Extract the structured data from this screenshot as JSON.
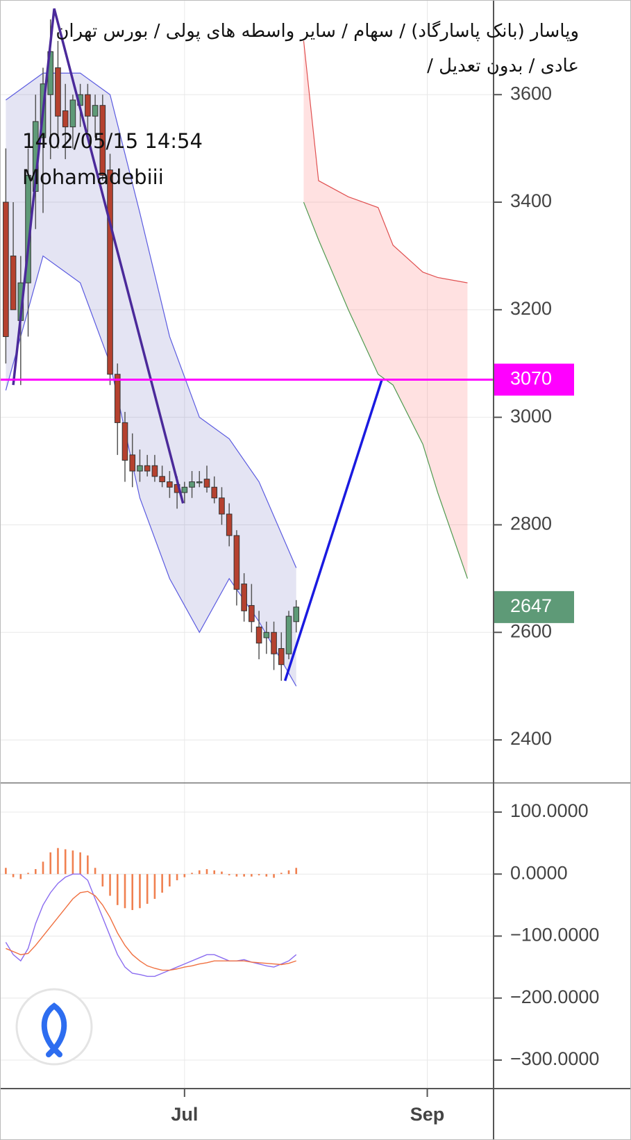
{
  "chart_data": [
    {
      "type": "candlestick",
      "title": "وپاسار (بانک پاسارگاد) / سهام / سایر واسطه های پولی / بورس تهران",
      "subtitle": "عادی / بدون تعدیل /",
      "timestamp": "1402/05/15 14:54",
      "author": "Mohamadebiii",
      "up_color": "#5e9a77",
      "down_color": "#b5412f",
      "ohlc": [
        [
          3400,
          3500,
          3100,
          3150
        ],
        [
          3300,
          3400,
          3200,
          3200
        ],
        [
          3180,
          3300,
          3060,
          3250
        ],
        [
          3250,
          3500,
          3150,
          3450
        ],
        [
          3420,
          3600,
          3350,
          3550
        ],
        [
          3520,
          3650,
          3380,
          3620
        ],
        [
          3600,
          3740,
          3480,
          3680
        ],
        [
          3650,
          3700,
          3500,
          3560
        ],
        [
          3570,
          3620,
          3480,
          3540
        ],
        [
          3540,
          3600,
          3500,
          3590
        ],
        [
          3580,
          3620,
          3540,
          3600
        ],
        [
          3600,
          3620,
          3530,
          3560
        ],
        [
          3560,
          3600,
          3520,
          3580
        ],
        [
          3580,
          3600,
          3440,
          3450
        ],
        [
          3460,
          3490,
          3060,
          3080
        ],
        [
          3080,
          3100,
          2930,
          2990
        ],
        [
          2990,
          3010,
          2880,
          2920
        ],
        [
          2930,
          2970,
          2870,
          2900
        ],
        [
          2900,
          2940,
          2880,
          2910
        ],
        [
          2910,
          2930,
          2890,
          2900
        ],
        [
          2910,
          2930,
          2880,
          2890
        ],
        [
          2890,
          2910,
          2870,
          2880
        ],
        [
          2880,
          2900,
          2850,
          2870
        ],
        [
          2875,
          2890,
          2830,
          2860
        ],
        [
          2860,
          2880,
          2840,
          2870
        ],
        [
          2870,
          2900,
          2850,
          2880
        ],
        [
          2880,
          2900,
          2870,
          2880
        ],
        [
          2885,
          2910,
          2860,
          2870
        ],
        [
          2870,
          2890,
          2840,
          2850
        ],
        [
          2850,
          2870,
          2800,
          2820
        ],
        [
          2820,
          2840,
          2760,
          2780
        ],
        [
          2780,
          2790,
          2650,
          2680
        ],
        [
          2690,
          2710,
          2620,
          2640
        ],
        [
          2650,
          2690,
          2600,
          2620
        ],
        [
          2610,
          2640,
          2550,
          2580
        ],
        [
          2590,
          2620,
          2560,
          2600
        ],
        [
          2600,
          2620,
          2530,
          2560
        ],
        [
          2570,
          2600,
          2510,
          2540
        ],
        [
          2560,
          2640,
          2550,
          2630
        ],
        [
          2620,
          2660,
          2600,
          2647
        ]
      ],
      "bollinger": {
        "color": "#5a5ae0",
        "x": [
          0,
          5,
          10,
          14,
          18,
          22,
          26,
          30,
          34,
          39
        ],
        "upper": [
          3590,
          3640,
          3640,
          3600,
          3380,
          3150,
          3000,
          2960,
          2880,
          2720
        ],
        "lower": [
          3050,
          3300,
          3250,
          3100,
          2850,
          2700,
          2600,
          2700,
          2620,
          2500
        ]
      },
      "cloud": {
        "color_a": "#4f9a4f",
        "color_b": "#e05050",
        "x": [
          40,
          42,
          46,
          50,
          52,
          56,
          58,
          62
        ],
        "span_a": [
          3400,
          3330,
          3200,
          3080,
          3060,
          2950,
          2860,
          2700
        ],
        "span_b": [
          3700,
          3440,
          3410,
          3390,
          3320,
          3270,
          3260,
          3250
        ]
      },
      "trendlines": [
        {
          "color": "#1a1ae0",
          "x": [
            37.5,
            50.5
          ],
          "values": [
            2510,
            3070
          ]
        },
        {
          "color": "#4b2a9a",
          "x": [
            1,
            6.5,
            23.8
          ],
          "values": [
            3060,
            3760,
            2840
          ]
        }
      ],
      "price_lines": [
        {
          "value": 3070,
          "color": "#ff00ff"
        }
      ],
      "xlim": [
        -0.78,
        65.5
      ],
      "xticks": [
        {
          "value": 24,
          "label": "Jul"
        },
        {
          "value": 56.6,
          "label": "Sep"
        }
      ],
      "ylim": [
        2320,
        3776
      ],
      "yticks": [
        2400,
        2600,
        2800,
        3000,
        3200,
        3400,
        3600
      ],
      "grid": true
    },
    {
      "type": "macd",
      "histogram_color": "#f08050",
      "histogram": [
        10,
        -5,
        -8,
        2,
        8,
        20,
        35,
        42,
        40,
        38,
        35,
        30,
        10,
        -20,
        -35,
        -50,
        -55,
        -58,
        -55,
        -48,
        -40,
        -30,
        -20,
        -10,
        -5,
        2,
        6,
        8,
        6,
        4,
        -2,
        -4,
        -4,
        -4,
        -2,
        -4,
        -6,
        2,
        6,
        10
      ],
      "series": [
        {
          "color": "#8a6cf0",
          "values": [
            -110,
            -130,
            -140,
            -120,
            -80,
            -50,
            -30,
            -15,
            -5,
            0,
            0,
            -10,
            -40,
            -70,
            -100,
            -130,
            -150,
            -160,
            -162,
            -165,
            -165,
            -160,
            -155,
            -150,
            -145,
            -140,
            -135,
            -130,
            -130,
            -135,
            -140,
            -140,
            -138,
            -142,
            -145,
            -148,
            -150,
            -145,
            -140,
            -130
          ]
        },
        {
          "color": "#f07040",
          "values": [
            -120,
            -125,
            -130,
            -128,
            -115,
            -100,
            -85,
            -70,
            -55,
            -40,
            -30,
            -28,
            -35,
            -50,
            -70,
            -95,
            -115,
            -130,
            -140,
            -148,
            -152,
            -155,
            -155,
            -153,
            -150,
            -148,
            -145,
            -143,
            -140,
            -140,
            -140,
            -140,
            -140,
            -142,
            -143,
            -144,
            -145,
            -146,
            -144,
            -140
          ]
        }
      ],
      "ylim": [
        -346,
        147
      ],
      "yticks": [
        {
          "value": 100,
          "label": "100.0000"
        },
        {
          "value": 0,
          "label": "0.0000"
        },
        {
          "value": -100,
          "label": "−100.0000"
        },
        {
          "value": -200,
          "label": "−200.0000"
        },
        {
          "value": -300,
          "label": "−300.0000"
        }
      ],
      "grid": true
    }
  ]
}
